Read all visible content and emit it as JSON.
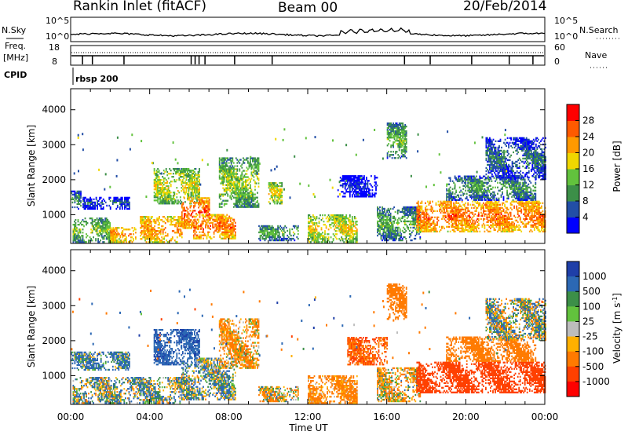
{
  "header": {
    "title": "Rankin Inlet (fitACF)",
    "beam": "Beam 00",
    "date": "20/Feb/2014"
  },
  "top_panels": {
    "nsky_label": "N.Sky",
    "nsearch_label": "N.Search",
    "noise_ticks": [
      "10^5",
      "10^0"
    ],
    "freq_label": "Freq.",
    "freq_unit": "[MHz]",
    "freq_ticks": [
      "18",
      "8"
    ],
    "nave_label": "Nave",
    "nave_ticks": [
      "60",
      "0"
    ],
    "cpid_label": "CPID",
    "cpid_value": "rbsp 200"
  },
  "colors": {
    "power_scale": [
      "#0000ff",
      "#224ea6",
      "#3c8f48",
      "#62c23d",
      "#f0d700",
      "#ff9900",
      "#ff5a00",
      "#ff0000"
    ],
    "velocity_scale": [
      "#1f3fa8",
      "#2c68b4",
      "#3c8f48",
      "#62c23d",
      "#bdbdbd",
      "#ffb000",
      "#ff7a00",
      "#ff4000",
      "#ff0000"
    ]
  },
  "chart_data": [
    {
      "type": "heatmap",
      "panel": "power",
      "title": "",
      "xlabel": "Time UT",
      "ylabel": "Slant Range [km]",
      "x_ticks": [
        "00:00",
        "04:00",
        "08:00",
        "12:00",
        "16:00",
        "20:00",
        "00:00"
      ],
      "xlim_hours": [
        0,
        24
      ],
      "ylim": [
        180,
        4600
      ],
      "y_ticks": [
        1000,
        2000,
        3000,
        4000
      ],
      "colorbar_label": "Power [dB]",
      "colorbar_ticks": [
        "4",
        "8",
        "12",
        "16",
        "20",
        "24",
        "28"
      ],
      "colorbar_range": [
        0,
        30
      ],
      "regions": [
        {
          "t": [
            0.0,
            0.5
          ],
          "r": [
            1150,
            1650
          ],
          "level": 10
        },
        {
          "t": [
            0.6,
            3.0
          ],
          "r": [
            1150,
            1500
          ],
          "level": 6
        },
        {
          "t": [
            0.1,
            2.0
          ],
          "r": [
            200,
            900
          ],
          "level": 14
        },
        {
          "t": [
            2.0,
            3.3
          ],
          "r": [
            200,
            650
          ],
          "level": 22
        },
        {
          "t": [
            3.5,
            5.6
          ],
          "r": [
            200,
            950
          ],
          "level": 22
        },
        {
          "t": [
            4.2,
            6.5
          ],
          "r": [
            1300,
            2300
          ],
          "level": 17
        },
        {
          "t": [
            5.6,
            7.0
          ],
          "r": [
            600,
            1500
          ],
          "level": 25
        },
        {
          "t": [
            6.2,
            8.3
          ],
          "r": [
            300,
            1000
          ],
          "level": 24
        },
        {
          "t": [
            7.5,
            9.5
          ],
          "r": [
            1200,
            2600
          ],
          "level": 15
        },
        {
          "t": [
            9.5,
            11.5
          ],
          "r": [
            250,
            700
          ],
          "level": 12
        },
        {
          "t": [
            10.0,
            10.7
          ],
          "r": [
            1300,
            1900
          ],
          "level": 18
        },
        {
          "t": [
            12.0,
            14.5
          ],
          "r": [
            200,
            1000
          ],
          "level": 18
        },
        {
          "t": [
            13.5,
            15.5
          ],
          "r": [
            1500,
            2100
          ],
          "level": 4
        },
        {
          "t": [
            15.5,
            17.7
          ],
          "r": [
            250,
            1200
          ],
          "level": 12
        },
        {
          "t": [
            16.0,
            17.0
          ],
          "r": [
            2600,
            3600
          ],
          "level": 13
        },
        {
          "t": [
            17.5,
            24.0
          ],
          "r": [
            500,
            1400
          ],
          "level": 24
        },
        {
          "t": [
            19.0,
            23.5
          ],
          "r": [
            1400,
            2100
          ],
          "level": 11
        },
        {
          "t": [
            21.0,
            24.0
          ],
          "r": [
            2000,
            3200
          ],
          "level": 8
        }
      ]
    },
    {
      "type": "heatmap",
      "panel": "velocity",
      "title": "",
      "xlabel": "Time UT",
      "ylabel": "Slant Range [km]",
      "x_ticks": [
        "00:00",
        "04:00",
        "08:00",
        "12:00",
        "16:00",
        "20:00",
        "00:00"
      ],
      "xlim_hours": [
        0,
        24
      ],
      "ylim": [
        180,
        4600
      ],
      "y_ticks": [
        1000,
        2000,
        3000,
        4000
      ],
      "colorbar_label": "Velocity [m s^-1]",
      "colorbar_ticks": [
        "1000",
        "500",
        "100",
        "25",
        "-25",
        "-100",
        "-500",
        "-1000"
      ],
      "colorbar_range": [
        -1000,
        1000
      ],
      "regions": [
        {
          "t": [
            0.0,
            3.0
          ],
          "r": [
            1150,
            1650
          ],
          "level": 150
        },
        {
          "t": [
            0.1,
            5.6
          ],
          "r": [
            200,
            950
          ],
          "level": 60
        },
        {
          "t": [
            4.2,
            6.5
          ],
          "r": [
            1300,
            2300
          ],
          "level": 400
        },
        {
          "t": [
            5.6,
            8.3
          ],
          "r": [
            300,
            1500
          ],
          "level": 80
        },
        {
          "t": [
            7.5,
            9.5
          ],
          "r": [
            1200,
            2600
          ],
          "level": -150
        },
        {
          "t": [
            9.5,
            11.5
          ],
          "r": [
            250,
            700
          ],
          "level": -60
        },
        {
          "t": [
            12.0,
            14.5
          ],
          "r": [
            200,
            1000
          ],
          "level": -200
        },
        {
          "t": [
            14.0,
            16.0
          ],
          "r": [
            1300,
            2100
          ],
          "level": -500
        },
        {
          "t": [
            15.5,
            17.7
          ],
          "r": [
            250,
            1200
          ],
          "level": -80
        },
        {
          "t": [
            16.0,
            17.0
          ],
          "r": [
            2600,
            3600
          ],
          "level": -300
        },
        {
          "t": [
            17.5,
            24.0
          ],
          "r": [
            500,
            1400
          ],
          "level": -700
        },
        {
          "t": [
            19.0,
            23.5
          ],
          "r": [
            1400,
            2100
          ],
          "level": -300
        },
        {
          "t": [
            21.0,
            24.0
          ],
          "r": [
            2000,
            3200
          ],
          "level": 30
        }
      ]
    }
  ]
}
